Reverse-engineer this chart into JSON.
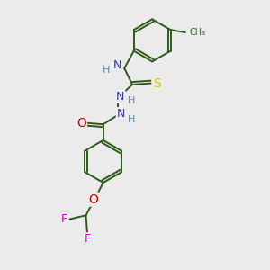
{
  "background_color": "#ebebeb",
  "bond_color": "#2d5a1b",
  "atom_colors": {
    "N": "#3333cc",
    "O": "#cc0000",
    "S": "#cccc00",
    "F": "#cc00cc",
    "H": "#5588aa",
    "C": "#2d5a1b"
  },
  "figsize": [
    3.0,
    3.0
  ],
  "dpi": 100,
  "xlim": [
    0,
    10
  ],
  "ylim": [
    0,
    10
  ]
}
